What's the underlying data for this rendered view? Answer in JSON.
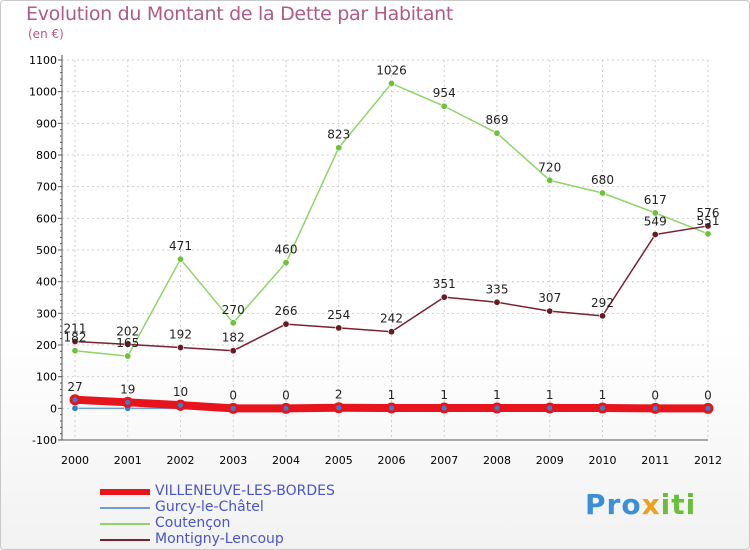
{
  "header": {
    "title": "Evolution du Montant de la Dette par Habitant",
    "unit": "(en €)"
  },
  "logo": {
    "p1": "Pro",
    "p2": "x",
    "p3": "iti"
  },
  "colors": {
    "grid": "#cfcfcf",
    "axis_text": "#000000",
    "label_text": "#222222"
  },
  "chart_data": {
    "type": "line",
    "title": "Evolution du Montant de la Dette par Habitant",
    "subtitle": "(en €)",
    "x": [
      "2000",
      "2001",
      "2002",
      "2003",
      "2004",
      "2005",
      "2006",
      "2007",
      "2008",
      "2009",
      "2010",
      "2011",
      "2012"
    ],
    "ylim": [
      -100,
      1100
    ],
    "yticks": [
      -100,
      0,
      100,
      200,
      300,
      400,
      500,
      600,
      700,
      800,
      900,
      1000,
      1100
    ],
    "grid": true,
    "legend_position": "bottom-left",
    "series": [
      {
        "name": "VILLENEUVE-LES-BORDES",
        "color": "#e8141c",
        "marker_color": "#3a7fc8",
        "width": 8,
        "values": [
          27,
          19,
          10,
          0,
          0,
          2,
          1,
          1,
          1,
          1,
          1,
          0,
          0
        ],
        "labels": [
          "27",
          "19",
          "10",
          "0",
          "0",
          "2",
          "1",
          "1",
          "1",
          "1",
          "1",
          "0",
          "0"
        ]
      },
      {
        "name": "Gurcy-le-Châtel",
        "color": "#6a9fd0",
        "marker_color": "#3a7fc8",
        "width": 1.5,
        "values": [
          0,
          0,
          0,
          0,
          0,
          0,
          0,
          0,
          0,
          0,
          0,
          0,
          0
        ],
        "labels": []
      },
      {
        "name": "Coutençon",
        "color": "#8ed468",
        "marker_color": "#6ec23a",
        "width": 1.5,
        "values": [
          182,
          165,
          471,
          270,
          460,
          823,
          1026,
          954,
          869,
          720,
          680,
          617,
          551
        ],
        "labels": [
          "182",
          "165",
          "471",
          "270",
          "460",
          "823",
          "1026",
          "954",
          "869",
          "720",
          "680",
          "617",
          "551"
        ]
      },
      {
        "name": "Montigny-Lencoup",
        "color": "#7a2230",
        "marker_color": "#6a1a22",
        "width": 1.5,
        "values": [
          211,
          202,
          192,
          182,
          266,
          254,
          242,
          351,
          335,
          307,
          292,
          549,
          576
        ],
        "labels": [
          "211",
          "202",
          "192",
          "182",
          "266",
          "254",
          "242",
          "351",
          "335",
          "307",
          "292",
          "549",
          "576"
        ]
      }
    ]
  }
}
